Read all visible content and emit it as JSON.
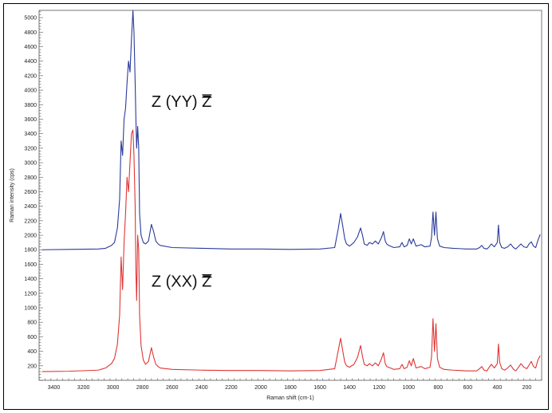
{
  "chart_data": {
    "type": "line",
    "title": "",
    "xlabel": "Raman shift (cm-1)",
    "ylabel": "Raman intensity (cps)",
    "xlim": [
      3500,
      100
    ],
    "ylim": [
      0,
      5100
    ],
    "x_reversed": true,
    "x_ticks": [
      3400,
      3200,
      3000,
      2800,
      2600,
      2400,
      2200,
      2000,
      1800,
      1600,
      1400,
      1200,
      1000,
      800,
      600,
      400,
      200
    ],
    "y_ticks": [
      200,
      400,
      600,
      800,
      1000,
      1200,
      1400,
      1600,
      1800,
      2000,
      2200,
      2400,
      2600,
      2800,
      3000,
      3200,
      3400,
      3600,
      3800,
      4000,
      4200,
      4400,
      4600,
      4800,
      5000
    ],
    "grid": false,
    "annotations": [
      {
        "text": "Z (YY) Z",
        "overbar": "Z",
        "x": 2740,
        "y": 3770
      },
      {
        "text": "Z (XX) Z",
        "overbar": "Z",
        "x": 2740,
        "y": 1290
      }
    ],
    "series": [
      {
        "color": "#2b3a9a",
        "baseline": 1800,
        "x": [
          3480,
          3300,
          3100,
          3050,
          3010,
          2990,
          2970,
          2955,
          2945,
          2935,
          2925,
          2915,
          2905,
          2895,
          2885,
          2875,
          2865,
          2858,
          2850,
          2845,
          2840,
          2833,
          2826,
          2820,
          2810,
          2795,
          2780,
          2760,
          2740,
          2725,
          2710,
          2695,
          2680,
          2600,
          2400,
          2200,
          2000,
          1800,
          1600,
          1500,
          1475,
          1460,
          1445,
          1432,
          1420,
          1400,
          1370,
          1345,
          1325,
          1312,
          1300,
          1280,
          1265,
          1245,
          1225,
          1205,
          1185,
          1170,
          1158,
          1148,
          1135,
          1100,
          1060,
          1045,
          1030,
          1010,
          995,
          982,
          968,
          950,
          915,
          890,
          855,
          845,
          835,
          825,
          815,
          805,
          790,
          760,
          700,
          650,
          610,
          540,
          520,
          505,
          490,
          470,
          455,
          440,
          420,
          400,
          392,
          384,
          370,
          350,
          330,
          310,
          290,
          275,
          260,
          240,
          220,
          200,
          185,
          170,
          155,
          140,
          125,
          110
        ],
        "y": [
          1800,
          1805,
          1810,
          1820,
          1860,
          1900,
          2100,
          2500,
          3300,
          3100,
          3600,
          3750,
          4100,
          4400,
          4250,
          4700,
          5100,
          4800,
          4100,
          3600,
          3200,
          3500,
          3200,
          2300,
          2000,
          1900,
          1880,
          1920,
          2150,
          2050,
          1920,
          1880,
          1860,
          1830,
          1820,
          1810,
          1810,
          1805,
          1810,
          1830,
          2100,
          2300,
          2120,
          1950,
          1880,
          1850,
          1900,
          1980,
          2100,
          2000,
          1880,
          1860,
          1900,
          1880,
          1920,
          1880,
          1960,
          2050,
          1920,
          1880,
          1860,
          1830,
          1840,
          1900,
          1840,
          1860,
          1950,
          1880,
          1950,
          1850,
          1870,
          1840,
          1850,
          1970,
          2320,
          2000,
          2320,
          1950,
          1850,
          1830,
          1820,
          1815,
          1810,
          1810,
          1830,
          1860,
          1820,
          1810,
          1840,
          1880,
          1840,
          1900,
          2140,
          1900,
          1830,
          1820,
          1840,
          1880,
          1830,
          1810,
          1840,
          1880,
          1840,
          1830,
          1880,
          1910,
          1850,
          1830,
          1930,
          2010
        ]
      },
      {
        "color": "#e03535",
        "baseline": 120,
        "x": [
          3480,
          3300,
          3100,
          3050,
          3010,
          2990,
          2970,
          2955,
          2945,
          2935,
          2925,
          2915,
          2905,
          2895,
          2885,
          2875,
          2865,
          2858,
          2850,
          2845,
          2840,
          2833,
          2826,
          2820,
          2810,
          2795,
          2780,
          2760,
          2740,
          2725,
          2710,
          2695,
          2680,
          2600,
          2400,
          2200,
          2000,
          1800,
          1600,
          1500,
          1475,
          1460,
          1445,
          1432,
          1420,
          1400,
          1370,
          1345,
          1325,
          1312,
          1300,
          1280,
          1265,
          1245,
          1225,
          1205,
          1185,
          1170,
          1158,
          1148,
          1135,
          1100,
          1060,
          1045,
          1030,
          1010,
          995,
          982,
          968,
          950,
          915,
          890,
          855,
          845,
          835,
          825,
          815,
          805,
          790,
          760,
          700,
          650,
          610,
          540,
          520,
          505,
          490,
          470,
          455,
          440,
          420,
          400,
          392,
          384,
          370,
          350,
          330,
          310,
          290,
          275,
          260,
          240,
          220,
          200,
          185,
          170,
          155,
          140,
          125,
          110
        ],
        "y": [
          120,
          125,
          140,
          170,
          230,
          300,
          500,
          900,
          1700,
          1250,
          1900,
          2300,
          2800,
          2600,
          3000,
          3400,
          3450,
          3100,
          2400,
          1500,
          1100,
          2000,
          1800,
          900,
          480,
          280,
          220,
          260,
          450,
          320,
          220,
          190,
          170,
          150,
          140,
          135,
          135,
          130,
          135,
          160,
          420,
          580,
          400,
          250,
          200,
          180,
          220,
          320,
          480,
          330,
          220,
          200,
          230,
          200,
          240,
          200,
          290,
          380,
          230,
          190,
          180,
          150,
          160,
          220,
          160,
          180,
          270,
          200,
          300,
          170,
          190,
          160,
          180,
          320,
          850,
          400,
          780,
          300,
          180,
          150,
          140,
          135,
          130,
          130,
          160,
          190,
          140,
          130,
          180,
          220,
          170,
          230,
          500,
          250,
          160,
          140,
          170,
          210,
          150,
          130,
          170,
          230,
          180,
          160,
          210,
          260,
          190,
          170,
          280,
          340
        ]
      }
    ]
  }
}
